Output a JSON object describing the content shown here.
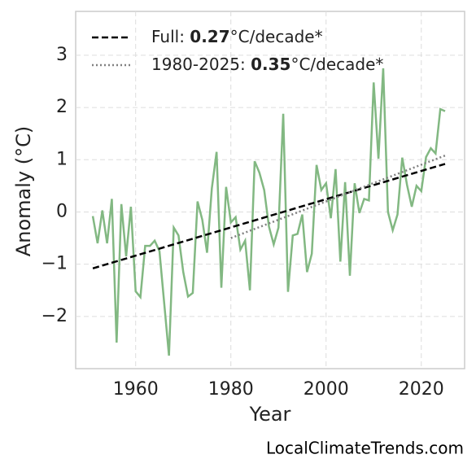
{
  "chart_data": {
    "type": "line",
    "x_label": "Year",
    "y_label": "Anomaly (°C)",
    "source": "LocalClimateTrends.com",
    "xlim": [
      1947.4,
      2029.1
    ],
    "ylim": [
      -3.0,
      3.84
    ],
    "xticks": [
      1960,
      1980,
      2000,
      2020
    ],
    "yticks": [
      {
        "value": -2,
        "label": "−2"
      },
      {
        "value": -1,
        "label": "−1"
      },
      0,
      1,
      2,
      3
    ],
    "grid": true,
    "legend": "upper left",
    "x": [
      1951,
      1952,
      1953,
      1954,
      1955,
      1956,
      1957,
      1958,
      1959,
      1960,
      1961,
      1962,
      1963,
      1964,
      1965,
      1966,
      1967,
      1968,
      1969,
      1970,
      1971,
      1972,
      1973,
      1974,
      1975,
      1976,
      1977,
      1978,
      1979,
      1980,
      1981,
      1982,
      1983,
      1984,
      1985,
      1986,
      1987,
      1988,
      1989,
      1990,
      1991,
      1992,
      1993,
      1994,
      1995,
      1996,
      1997,
      1998,
      1999,
      2000,
      2001,
      2002,
      2003,
      2004,
      2005,
      2006,
      2007,
      2008,
      2009,
      2010,
      2011,
      2012,
      2013,
      2014,
      2015,
      2016,
      2017,
      2018,
      2019,
      2020,
      2021,
      2022,
      2023,
      2024,
      2025
    ],
    "series": [
      {
        "color": "#82b882",
        "values": [
          -0.08,
          -0.6,
          0.03,
          -0.6,
          0.25,
          -2.5,
          0.15,
          -0.85,
          0.1,
          -1.52,
          -1.63,
          -0.65,
          -0.65,
          -0.55,
          -0.75,
          -1.75,
          -2.75,
          -0.3,
          -0.45,
          -1.15,
          -1.62,
          -1.55,
          0.2,
          -0.15,
          -0.78,
          0.45,
          1.15,
          -1.45,
          0.48,
          -0.2,
          -0.1,
          -0.72,
          -0.55,
          -1.5,
          0.97,
          0.75,
          0.42,
          -0.28,
          -0.62,
          -0.3,
          1.88,
          -1.53,
          -0.45,
          -0.42,
          -0.05,
          -1.15,
          -0.8,
          0.9,
          0.42,
          0.55,
          -0.12,
          0.82,
          -0.95,
          0.57,
          -1.22,
          0.55,
          -0.02,
          0.25,
          0.22,
          2.48,
          1.02,
          2.75,
          0.0,
          -0.35,
          -0.05,
          1.04,
          0.52,
          0.1,
          0.5,
          0.4,
          1.05,
          1.22,
          1.12,
          1.97,
          1.93
        ]
      },
      {
        "name": "Full: ",
        "slope": 0.27,
        "unit": "°C/decade*",
        "color": "#000000",
        "dash": "dashed",
        "x": [
          1951,
          2025
        ],
        "values": [
          -1.08,
          0.92
        ]
      },
      {
        "name": "1980-2025: ",
        "slope": 0.35,
        "unit": "°C/decade*",
        "color": "#808080",
        "dash": "dotted",
        "x": [
          1980,
          2025
        ],
        "values": [
          -0.5,
          1.08
        ]
      }
    ]
  }
}
